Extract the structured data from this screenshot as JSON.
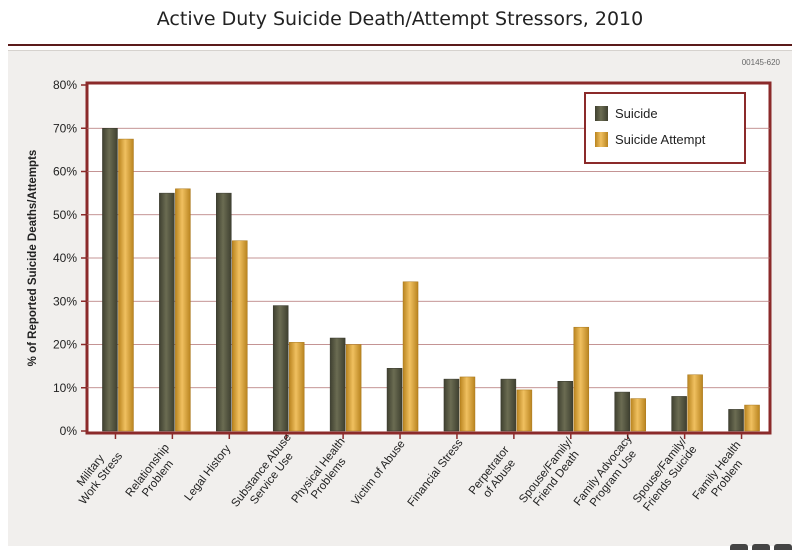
{
  "page": {
    "doc_code": "00145-620"
  },
  "chart_data": {
    "type": "bar",
    "title": "Active Duty Suicide Death/Attempt Stressors, 2010",
    "xlabel": "",
    "ylabel": "% of Reported Suicide Deaths/Attempts",
    "ylim": [
      0,
      80
    ],
    "yticks": [
      0,
      10,
      20,
      30,
      40,
      50,
      60,
      70,
      80
    ],
    "ytick_suffix": "%",
    "grid": true,
    "legend_position": "top-right",
    "categories": [
      [
        "Military",
        "Work Stress"
      ],
      [
        "Relationship",
        "Problem"
      ],
      [
        "Legal History"
      ],
      [
        "Substance Abuse",
        "Service Use"
      ],
      [
        "Physical Health",
        "Problems"
      ],
      [
        "Victim of Abuse"
      ],
      [
        "Financial Stress"
      ],
      [
        "Perpetrator",
        "of Abuse"
      ],
      [
        "Spouse/Family/",
        "Friend Death"
      ],
      [
        "Family Advocacy",
        "Program Use"
      ],
      [
        "Spouse/Family/",
        "Friends Suicide"
      ],
      [
        "Family Health",
        "Problem"
      ]
    ],
    "series": [
      {
        "name": "Suicide",
        "color": "#5b5c45",
        "values": [
          70,
          55,
          55,
          29,
          21.5,
          14.5,
          12,
          12,
          11.5,
          9,
          8,
          5
        ]
      },
      {
        "name": "Suicide Attempt",
        "color": "#d9a441",
        "values": [
          67.5,
          56,
          44,
          20.5,
          20,
          34.5,
          12.5,
          9.5,
          24,
          7.5,
          13,
          6
        ]
      }
    ],
    "colors": {
      "frame": "#8b2a2a",
      "grid": "#b07070",
      "text": "#222222"
    }
  }
}
